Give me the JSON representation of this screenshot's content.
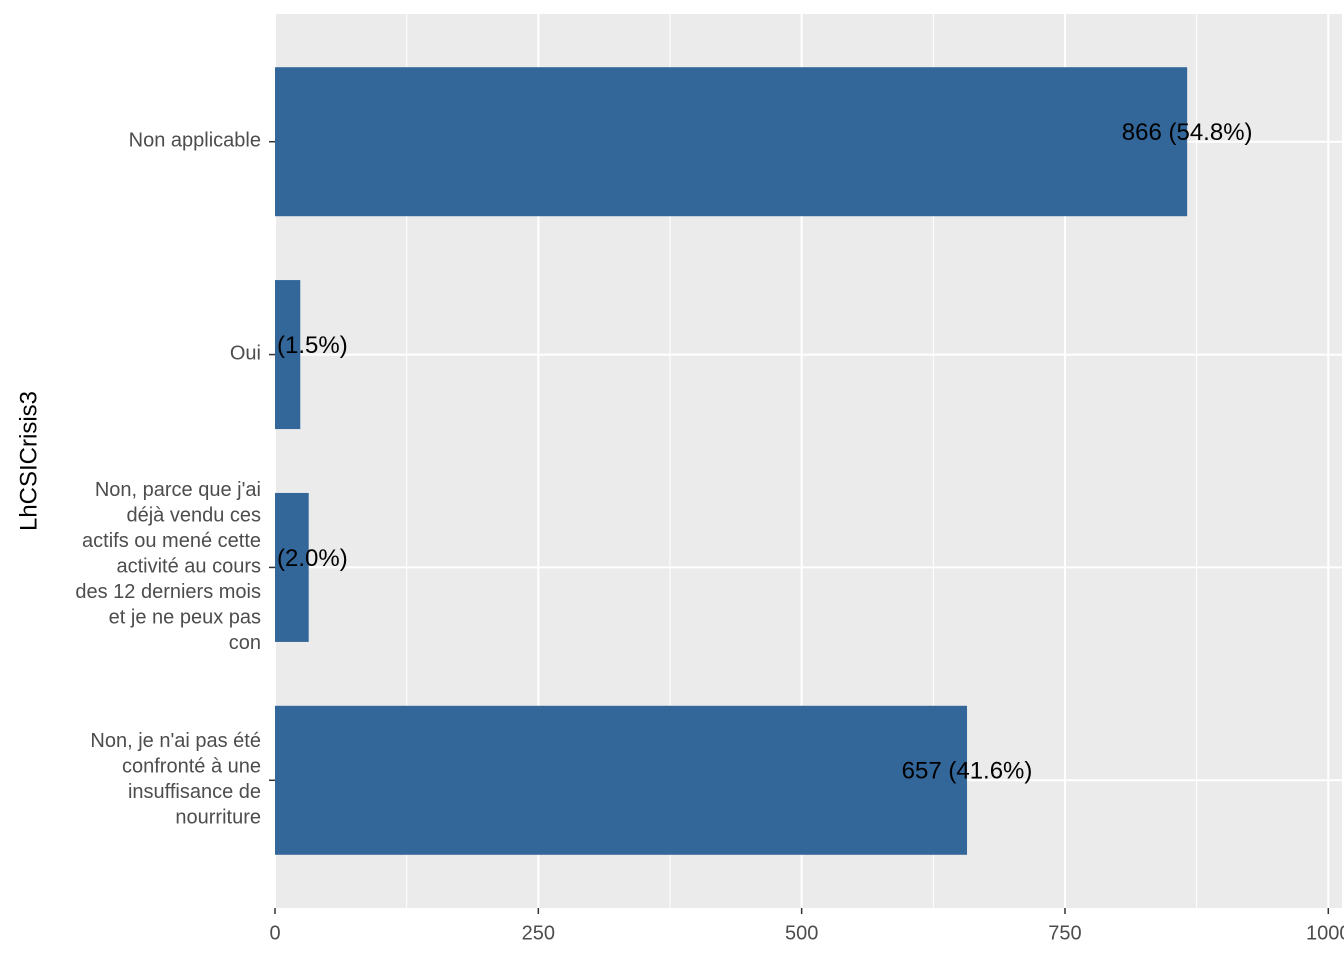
{
  "chart_data": {
    "type": "barh",
    "y_label": "LhCSICrisis3",
    "categories": [
      "Non applicable",
      "Oui",
      "Non, parce que j'ai\ndéjà vendu ces\nactifs ou mené cette\nactivité au cours\ndes 12 derniers mois\net je ne peux pas\ncon",
      "Non, je n'ai pas été\nconfronté à une\ninsuffisance de\nnourriture"
    ],
    "values": [
      866,
      24,
      32,
      657
    ],
    "value_labels": [
      "866 (54.8%)",
      "(1.5%)",
      "(2.0%)",
      "657 (41.6%)"
    ],
    "color": "#336699",
    "xlim": [
      0,
      1013
    ],
    "xticks": [
      0,
      250,
      500,
      750,
      1000
    ],
    "xminor_ticks": [
      125,
      375,
      625,
      875
    ],
    "grid": true
  }
}
